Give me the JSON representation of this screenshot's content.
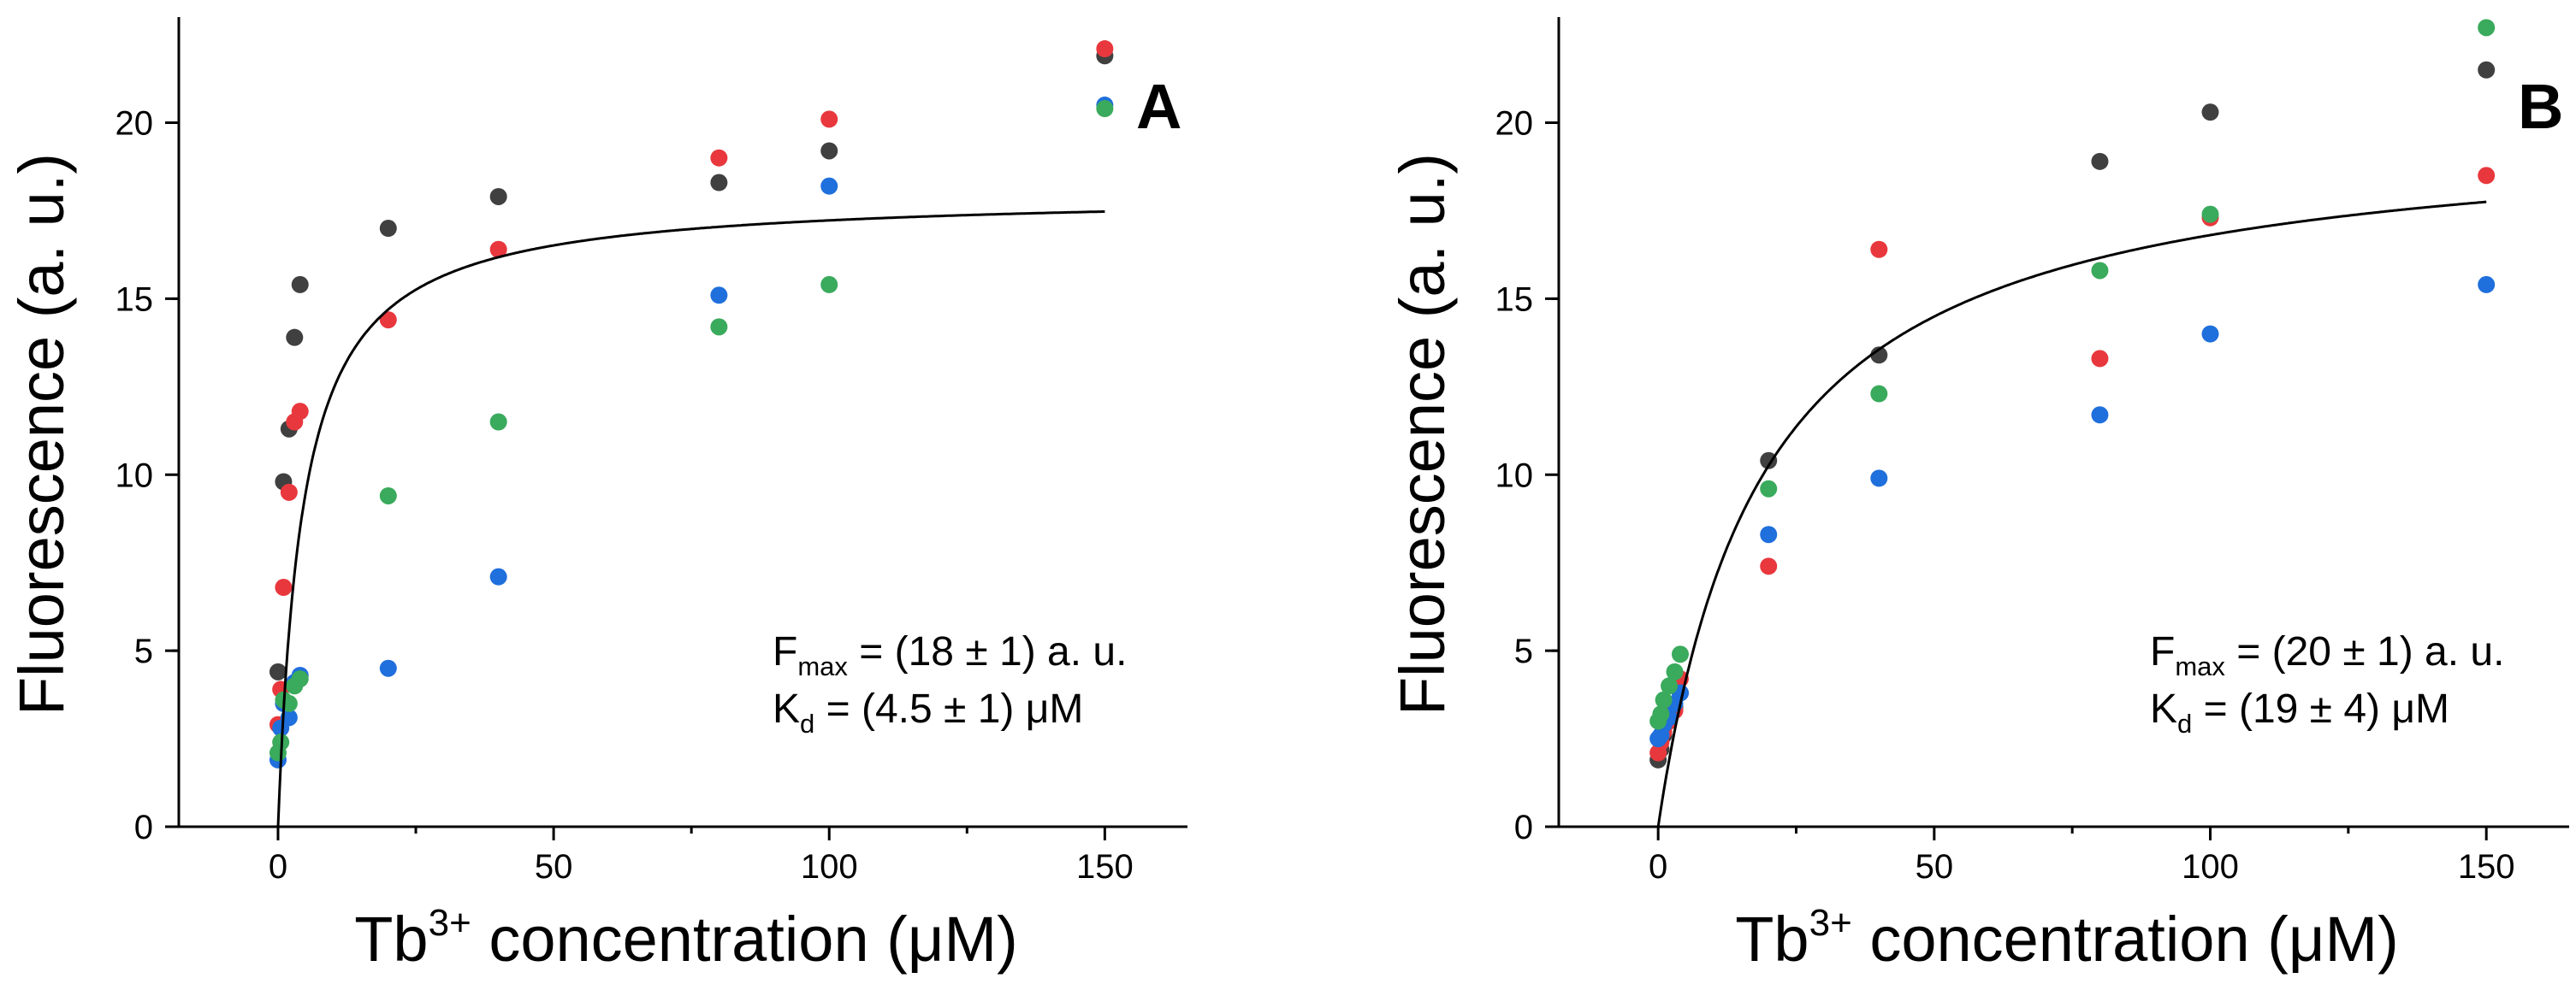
{
  "colors": {
    "black": "#404040",
    "red": "#e8383d",
    "blue": "#1f6fdc",
    "green": "#3aaa5c",
    "axis": "#000000",
    "fit": "#000000"
  },
  "chart_data": [
    {
      "type": "scatter",
      "panel": "A",
      "xlabel_base": "Tb",
      "xlabel_sup": "3+",
      "xlabel_rest": " concentration (μM)",
      "ylabel": "Fluorescence (a. u.)",
      "xlim": [
        -18,
        165
      ],
      "ylim": [
        0,
        23
      ],
      "xticks": [
        0,
        50,
        100,
        150
      ],
      "yticks": [
        0,
        5,
        10,
        15,
        20
      ],
      "annotation": {
        "fmax_main": "F",
        "fmax_sub": "max",
        "fmax_rest": " = (18 ± 1) a. u.",
        "kd_main": "K",
        "kd_sub": "d",
        "kd_rest": " = (4.5 ± 1) μM"
      },
      "fit": {
        "model": "Fmax*x/(Kd+x)",
        "Fmax": 18,
        "Kd": 4.5,
        "xmax": 150
      },
      "series": [
        {
          "name": "black",
          "color_key": "black",
          "points": [
            [
              0,
              4.4
            ],
            [
              1,
              9.8
            ],
            [
              2,
              11.3
            ],
            [
              3,
              13.9
            ],
            [
              4,
              15.4
            ],
            [
              20,
              17.0
            ],
            [
              40,
              17.9
            ],
            [
              80,
              18.3
            ],
            [
              100,
              19.2
            ],
            [
              150,
              21.9
            ]
          ]
        },
        {
          "name": "red",
          "color_key": "red",
          "points": [
            [
              0,
              2.9
            ],
            [
              0.5,
              3.9
            ],
            [
              1,
              6.8
            ],
            [
              2,
              9.5
            ],
            [
              3,
              11.5
            ],
            [
              4,
              11.8
            ],
            [
              20,
              14.4
            ],
            [
              40,
              16.4
            ],
            [
              80,
              19.0
            ],
            [
              100,
              20.1
            ],
            [
              150,
              22.1
            ]
          ]
        },
        {
          "name": "blue",
          "color_key": "blue",
          "points": [
            [
              0,
              1.9
            ],
            [
              0.5,
              2.8
            ],
            [
              1,
              3.5
            ],
            [
              2,
              3.1
            ],
            [
              3,
              4.1
            ],
            [
              4,
              4.3
            ],
            [
              20,
              4.5
            ],
            [
              40,
              7.1
            ],
            [
              80,
              15.1
            ],
            [
              100,
              18.2
            ],
            [
              150,
              20.5
            ]
          ]
        },
        {
          "name": "green",
          "color_key": "green",
          "points": [
            [
              0,
              2.1
            ],
            [
              0.5,
              2.4
            ],
            [
              1,
              3.6
            ],
            [
              2,
              3.5
            ],
            [
              3,
              4.0
            ],
            [
              4,
              4.2
            ],
            [
              20,
              9.4
            ],
            [
              40,
              11.5
            ],
            [
              80,
              14.2
            ],
            [
              100,
              15.4
            ],
            [
              150,
              20.4
            ]
          ]
        }
      ]
    },
    {
      "type": "scatter",
      "panel": "B",
      "xlabel_base": "Tb",
      "xlabel_sup": "3+",
      "xlabel_rest": " concentration (μM)",
      "ylabel": "Fluorescence (a. u.)",
      "xlim": [
        -18,
        165
      ],
      "ylim": [
        0,
        23
      ],
      "xticks": [
        0,
        50,
        100,
        150
      ],
      "yticks": [
        0,
        5,
        10,
        15,
        20
      ],
      "annotation": {
        "fmax_main": "F",
        "fmax_sub": "max",
        "fmax_rest": " = (20 ± 1) a. u.",
        "kd_main": "K",
        "kd_sub": "d",
        "kd_rest": " = (19 ± 4) μM"
      },
      "fit": {
        "model": "Fmax*x/(Kd+x)",
        "Fmax": 20,
        "Kd": 19,
        "xmax": 150
      },
      "series": [
        {
          "name": "black",
          "color_key": "black",
          "points": [
            [
              0,
              1.9
            ],
            [
              0.5,
              2.2
            ],
            [
              1,
              2.6
            ],
            [
              2,
              3.0
            ],
            [
              3,
              3.4
            ],
            [
              4,
              3.8
            ],
            [
              20,
              10.4
            ],
            [
              40,
              13.4
            ],
            [
              80,
              18.9
            ],
            [
              100,
              20.3
            ],
            [
              150,
              21.5
            ]
          ]
        },
        {
          "name": "red",
          "color_key": "red",
          "points": [
            [
              0,
              2.1
            ],
            [
              0.5,
              2.4
            ],
            [
              1,
              2.7
            ],
            [
              2,
              3.0
            ],
            [
              3,
              3.3
            ],
            [
              4,
              4.2
            ],
            [
              20,
              7.4
            ],
            [
              40,
              16.4
            ],
            [
              80,
              13.3
            ],
            [
              100,
              17.3
            ],
            [
              150,
              18.5
            ]
          ]
        },
        {
          "name": "blue",
          "color_key": "blue",
          "points": [
            [
              0,
              2.5
            ],
            [
              0.5,
              2.6
            ],
            [
              1,
              2.9
            ],
            [
              2,
              3.1
            ],
            [
              3,
              3.5
            ],
            [
              4,
              3.8
            ],
            [
              20,
              8.3
            ],
            [
              40,
              9.9
            ],
            [
              80,
              11.7
            ],
            [
              100,
              14.0
            ],
            [
              150,
              15.4
            ]
          ]
        },
        {
          "name": "green",
          "color_key": "green",
          "points": [
            [
              0,
              3.0
            ],
            [
              0.5,
              3.2
            ],
            [
              1,
              3.6
            ],
            [
              2,
              4.0
            ],
            [
              3,
              4.4
            ],
            [
              4,
              4.9
            ],
            [
              20,
              9.6
            ],
            [
              40,
              12.3
            ],
            [
              80,
              15.8
            ],
            [
              100,
              17.4
            ],
            [
              150,
              22.7
            ]
          ]
        }
      ]
    }
  ]
}
